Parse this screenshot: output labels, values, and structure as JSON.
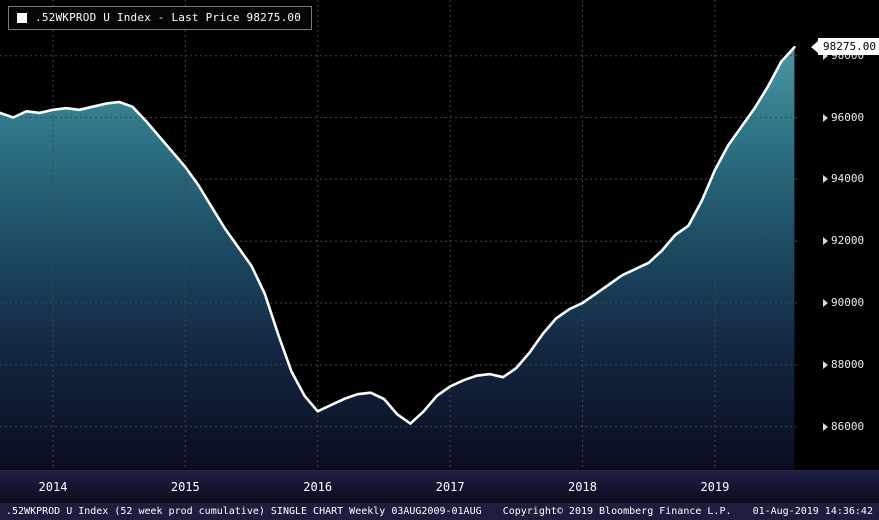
{
  "legend": {
    "label": ".52WKPROD U Index - Last Price 98275.00"
  },
  "last_price": {
    "label": "98275.00"
  },
  "footer": {
    "left": ".52WKPROD U Index (52 week prod cumulative) SINGLE CHART  Weekly 03AUG2009-01AUG",
    "copyright": "Copyright© 2019 Bloomberg Finance L.P.",
    "timestamp": "01-Aug-2019 14:36:42"
  },
  "colors": {
    "background": "#000000",
    "line": "#ffffff",
    "grid": "#464646",
    "fill_top": "#4a96a3",
    "fill_upper": "#2f7587",
    "fill_mid": "#1d4e66",
    "fill_lower": "#122641",
    "fill_bottom": "#0a0c1e",
    "axis_text": "#ececec",
    "footer_bg": "#1d1d3d"
  },
  "chart_data": {
    "type": "area",
    "title": ".52WKPROD U Index - Last Price 98275.00",
    "series_name": ".52WKPROD U Index",
    "xlabel": "",
    "ylabel": "",
    "grid": true,
    "legend_position": "top-left",
    "x_ticks": [
      "2014",
      "2015",
      "2016",
      "2017",
      "2018",
      "2019"
    ],
    "x_tick_values": [
      2014,
      2015,
      2016,
      2017,
      2018,
      2019
    ],
    "y_ticks": [
      98000,
      96000,
      94000,
      92000,
      90000,
      88000,
      86000
    ],
    "xlim": [
      2013.6,
      2019.62
    ],
    "ylim": [
      84600,
      99800
    ],
    "last_price": 98275.0,
    "x": [
      2013.6,
      2013.7,
      2013.8,
      2013.9,
      2014.0,
      2014.1,
      2014.2,
      2014.3,
      2014.4,
      2014.5,
      2014.6,
      2014.7,
      2014.8,
      2014.9,
      2015.0,
      2015.1,
      2015.2,
      2015.3,
      2015.4,
      2015.5,
      2015.6,
      2015.7,
      2015.8,
      2015.9,
      2016.0,
      2016.1,
      2016.2,
      2016.3,
      2016.4,
      2016.5,
      2016.6,
      2016.7,
      2016.8,
      2016.9,
      2017.0,
      2017.1,
      2017.2,
      2017.3,
      2017.4,
      2017.5,
      2017.6,
      2017.7,
      2017.8,
      2017.9,
      2018.0,
      2018.1,
      2018.2,
      2018.3,
      2018.4,
      2018.5,
      2018.6,
      2018.7,
      2018.8,
      2018.9,
      2019.0,
      2019.1,
      2019.2,
      2019.3,
      2019.4,
      2019.5,
      2019.6
    ],
    "values": [
      96150,
      96000,
      96200,
      96150,
      96250,
      96300,
      96250,
      96350,
      96450,
      96500,
      96350,
      95900,
      95400,
      94900,
      94400,
      93800,
      93100,
      92400,
      91800,
      91200,
      90300,
      89000,
      87800,
      87000,
      86500,
      86700,
      86900,
      87050,
      87100,
      86900,
      86400,
      86100,
      86500,
      87000,
      87300,
      87500,
      87650,
      87700,
      87600,
      87900,
      88400,
      89000,
      89500,
      89800,
      90000,
      90300,
      90600,
      90900,
      91100,
      91300,
      91700,
      92200,
      92500,
      93300,
      94300,
      95100,
      95700,
      96300,
      97000,
      97800,
      98275
    ]
  }
}
